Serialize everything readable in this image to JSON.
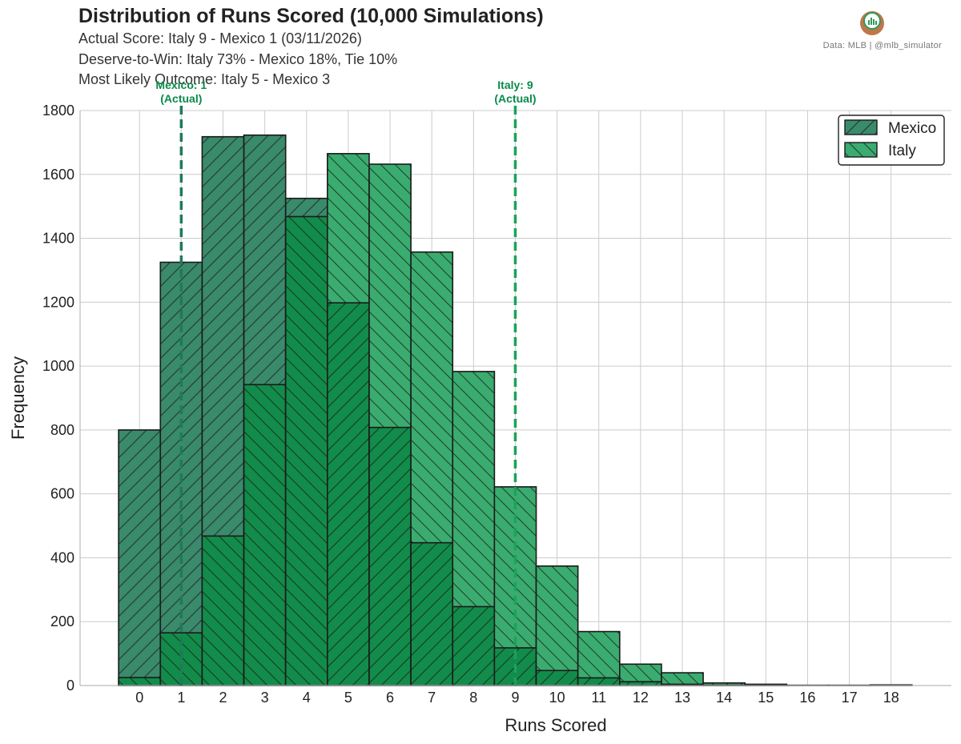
{
  "header": {
    "title": "Distribution of Runs Scored (10,000 Simulations)",
    "subtitle_1": "Actual Score: Italy 9 - Mexico 1  (03/11/2026)",
    "subtitle_2": "Deserve-to-Win: Italy 73% - Mexico 18%, Tie 10%",
    "subtitle_3": "Most Likely Outcome: Italy 5 - Mexico 3",
    "credit": "Data: MLB  |  @mlb_simulator"
  },
  "colors": {
    "mexico": "#3a8a6c",
    "italy": "#3aac6f",
    "overlap": "#128c4a",
    "marker": "#0a8a4a",
    "grid": "#cccccc"
  },
  "chart_data": {
    "type": "bar",
    "title": "Distribution of Runs Scored (10,000 Simulations)",
    "xlabel": "Runs Scored",
    "ylabel": "Frequency",
    "categories": [
      0,
      1,
      2,
      3,
      4,
      5,
      6,
      7,
      8,
      9,
      10,
      11,
      12,
      13,
      14,
      15,
      16,
      17,
      18
    ],
    "ylim": [
      0,
      1800
    ],
    "yticks": [
      0,
      200,
      400,
      600,
      800,
      1000,
      1200,
      1400,
      1600,
      1800
    ],
    "grid": true,
    "legend_position": "top-right",
    "series": [
      {
        "name": "Mexico",
        "hatch": "/",
        "values": [
          800,
          1325,
          1718,
          1723,
          1525,
          1198,
          808,
          447,
          247,
          118,
          47,
          24,
          12,
          4,
          1,
          1,
          0,
          0,
          0
        ]
      },
      {
        "name": "Italy",
        "hatch": "\\",
        "values": [
          25,
          165,
          468,
          942,
          1468,
          1665,
          1632,
          1357,
          983,
          622,
          374,
          169,
          67,
          40,
          8,
          4,
          1,
          1,
          2
        ]
      }
    ],
    "annotations": [
      {
        "x": 1,
        "label_1": "Mexico: 1",
        "label_2": "(Actual)",
        "series": "Mexico"
      },
      {
        "x": 9,
        "label_1": "Italy: 9",
        "label_2": "(Actual)",
        "series": "Italy"
      }
    ]
  }
}
